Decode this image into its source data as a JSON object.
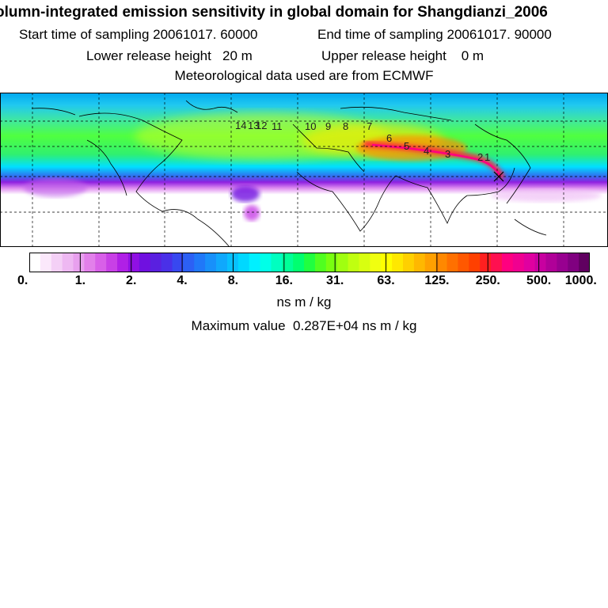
{
  "header": {
    "title": "olumn-integrated emission sensitivity in global domain for Shangdianzi_2006",
    "start_label": "Start time of sampling",
    "start_value": "20061017. 60000",
    "end_label": "End time of sampling",
    "end_value": "20061017. 90000",
    "lower_label": "Lower release height",
    "lower_value": "20 m",
    "upper_label": "Upper release height",
    "upper_value": "0 m",
    "met_line": "Meteorological data used are from ECMWF"
  },
  "map": {
    "trajectory_labels": [
      "14",
      "13",
      "12",
      "11",
      "10",
      "9",
      "8",
      "7",
      "6",
      "5",
      "4",
      "3",
      "2",
      "1"
    ],
    "receptor_marker": "x"
  },
  "colorbar": {
    "tick_labels": [
      "0.",
      "1.",
      "2.",
      "4.",
      "8.",
      "16.",
      "31.",
      "63.",
      "125.",
      "250.",
      "500.",
      "1000."
    ],
    "colors": [
      "#ffffff",
      "#fbe8fb",
      "#f4d0f6",
      "#eeb8f2",
      "#e8a0ee",
      "#e280ea",
      "#d860e8",
      "#c840e6",
      "#b020e6",
      "#9010e4",
      "#7010e0",
      "#5a20e0",
      "#4a30e8",
      "#3848f0",
      "#2c60f4",
      "#2078f8",
      "#1890fa",
      "#10a8fc",
      "#08c0fe",
      "#00d8ff",
      "#00f0ff",
      "#00ffe8",
      "#00ffc0",
      "#00ff98",
      "#00ff70",
      "#20ff40",
      "#50ff20",
      "#78ff10",
      "#a0ff10",
      "#c0ff10",
      "#d8ff10",
      "#f0ff10",
      "#ffff00",
      "#ffe800",
      "#ffd000",
      "#ffb800",
      "#ffa000",
      "#ff8800",
      "#ff7000",
      "#ff5800",
      "#ff4000",
      "#ff2020",
      "#ff1050",
      "#ff0080",
      "#f00090",
      "#e000a0",
      "#c800a0",
      "#b00098",
      "#980090",
      "#800080",
      "#600060"
    ],
    "units": "ns m / kg"
  },
  "footer": {
    "max_label": "Maximum value",
    "max_value": "0.287E+04",
    "max_units": "ns m / kg"
  }
}
